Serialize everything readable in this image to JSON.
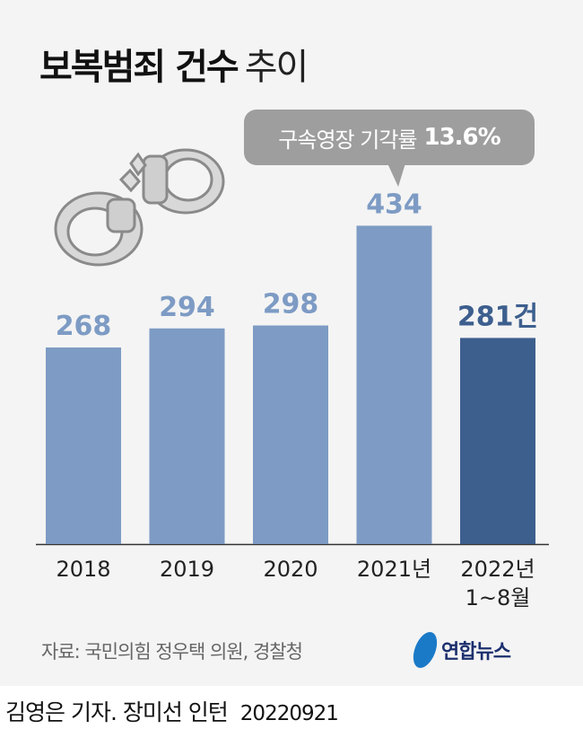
{
  "title": {
    "bold": "보복범죄 건수",
    "light": "추이"
  },
  "callout": {
    "text": "구속영장 기각률",
    "value": "13.6%"
  },
  "chart_data": {
    "type": "bar",
    "title": "보복범죄 건수 추이",
    "categories": [
      "2018",
      "2019",
      "2020",
      "2021년",
      "2022년 1~8월"
    ],
    "category_lines": [
      [
        "2018"
      ],
      [
        "2019"
      ],
      [
        "2020"
      ],
      [
        "2021년"
      ],
      [
        "2022년",
        "1~8월"
      ]
    ],
    "values": [
      268,
      294,
      298,
      434,
      281
    ],
    "value_labels": [
      "268",
      "294",
      "298",
      "434",
      "281건"
    ],
    "ylim": [
      0,
      460
    ],
    "grid": false,
    "colors": {
      "bar": "#7d9bc4",
      "highlight": "#3d5f8e",
      "background": "#f4f4f4"
    },
    "highlight_index": 4
  },
  "illustration": "handcuffs-icon",
  "source": "자료: 국민의힘 정우택 의원, 경찰청",
  "logo": "연합뉴스",
  "credit": {
    "authors": "김영은 기자. 장미선 인턴",
    "date": "20220921"
  }
}
